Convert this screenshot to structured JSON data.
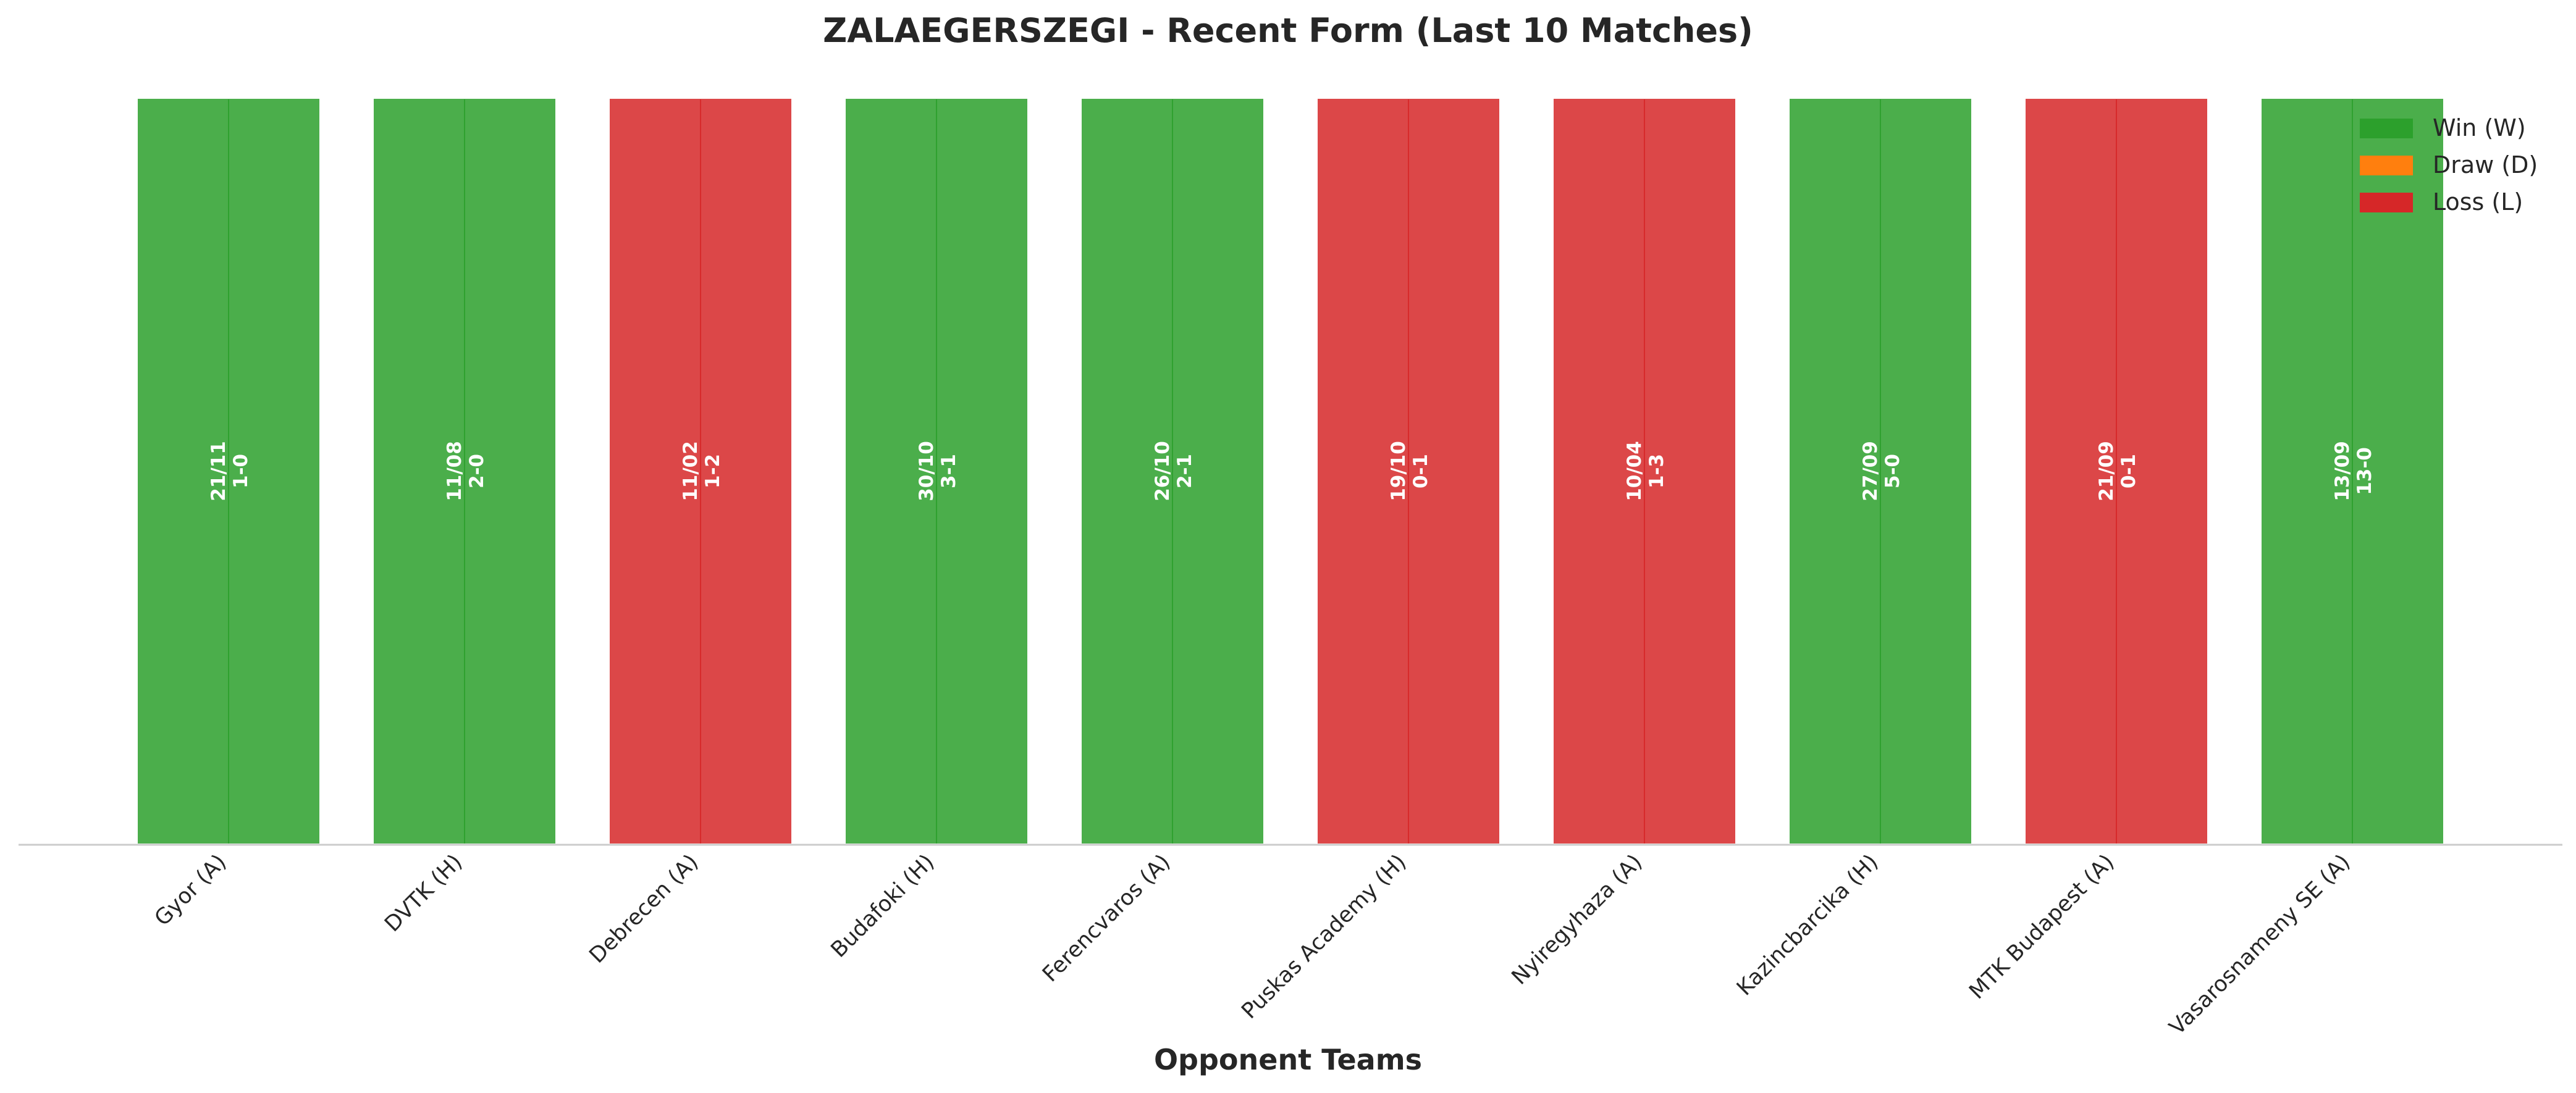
{
  "chart_data": {
    "type": "bar",
    "title": "ZALAEGERSZEGI - Recent Form (Last 10 Matches)",
    "xlabel": "Opponent Teams",
    "ylabel": "",
    "grid": false,
    "legend_placement": "top-right",
    "categories": [
      "Gyor (A)",
      "DVTK (H)",
      "Debrecen (A)",
      "Budafoki (H)",
      "Ferencvaros (A)",
      "Puskas Academy (H)",
      "Nyiregyhaza (A)",
      "Kazincbarcika (H)",
      "MTK Budapest (A)",
      "Vasarosnameny SE (A)"
    ],
    "values": [
      1,
      1,
      1,
      1,
      1,
      1,
      1,
      1,
      1,
      1
    ],
    "results": [
      "W",
      "W",
      "L",
      "W",
      "W",
      "L",
      "L",
      "W",
      "L",
      "W"
    ],
    "dates": [
      "21/11",
      "11/08",
      "11/02",
      "30/10",
      "26/10",
      "19/10",
      "10/04",
      "27/09",
      "21/09",
      "13/09"
    ],
    "scores": [
      "1-0",
      "2-0",
      "1-2",
      "3-1",
      "2-1",
      "0-1",
      "1-3",
      "5-0",
      "0-1",
      "13-0"
    ],
    "legend": [
      {
        "key": "W",
        "label": "Win (W)",
        "color": "#2ca02c"
      },
      {
        "key": "D",
        "label": "Draw (D)",
        "color": "#ff7f0e"
      },
      {
        "key": "L",
        "label": "Loss (L)",
        "color": "#d62728"
      }
    ]
  }
}
